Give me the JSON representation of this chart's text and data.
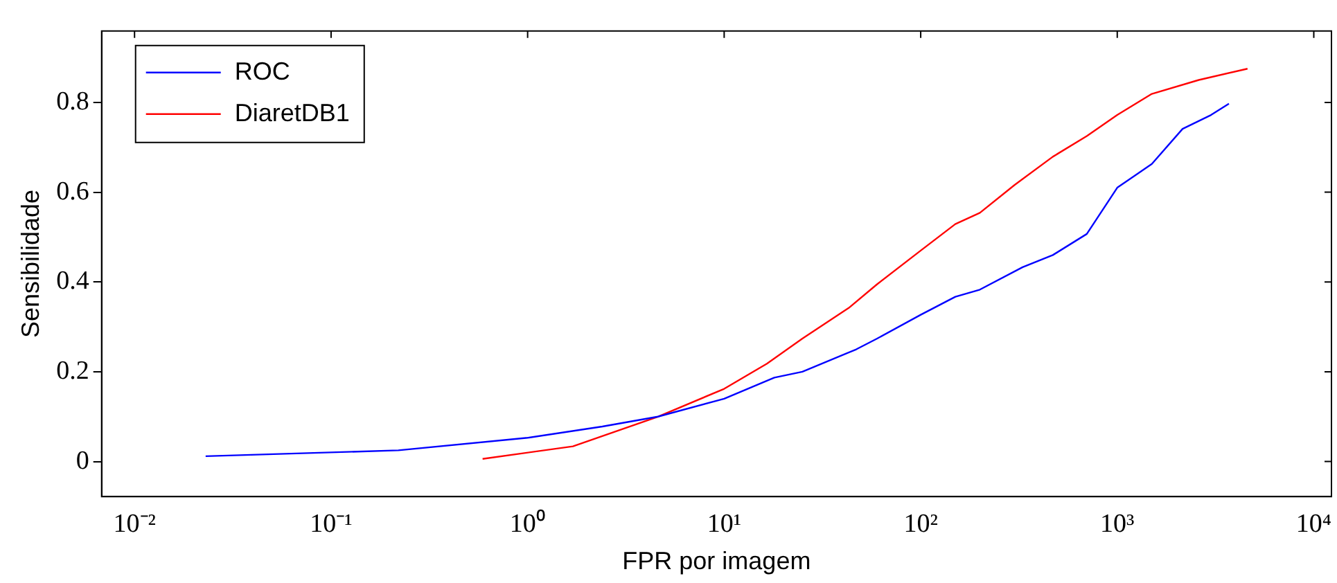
{
  "chart_data": {
    "type": "line",
    "xlabel": "FPR por imagem",
    "ylabel": "Sensibilidade",
    "log": "x",
    "xlim": [
      0.0068,
      12300
    ],
    "ylim": [
      -0.078,
      0.959
    ],
    "xticks": [
      {
        "value": 0.01,
        "label": "10⁻²"
      },
      {
        "value": 0.1,
        "label": "10⁻¹"
      },
      {
        "value": 1,
        "label": "10⁰"
      },
      {
        "value": 10,
        "label": "10¹"
      },
      {
        "value": 100,
        "label": "10²"
      },
      {
        "value": 1000,
        "label": "10³"
      },
      {
        "value": 10000,
        "label": "10⁴"
      }
    ],
    "yticks": [
      0,
      0.2,
      0.4,
      0.6,
      0.8
    ],
    "grid": false,
    "legend": "top left",
    "marker": "none",
    "line_style": "solid",
    "series": [
      {
        "name": "ROC",
        "color": "#0000ff",
        "x": [
          0.023,
          0.22,
          1,
          2.4,
          4.6,
          10,
          18,
          25,
          47,
          60,
          100,
          150,
          200,
          330,
          470,
          700,
          1000,
          1500,
          2150,
          3000,
          3700
        ],
        "values": [
          0.012,
          0.025,
          0.053,
          0.078,
          0.1,
          0.14,
          0.187,
          0.2,
          0.25,
          0.274,
          0.327,
          0.367,
          0.383,
          0.433,
          0.46,
          0.507,
          0.61,
          0.663,
          0.741,
          0.772,
          0.797
        ]
      },
      {
        "name": "DiaretDB1",
        "color": "#ff0000",
        "x": [
          0.59,
          1.7,
          4.6,
          10,
          16.5,
          25,
          43,
          60,
          100,
          150,
          200,
          300,
          470,
          700,
          1000,
          1500,
          2600,
          4600
        ],
        "values": [
          0.006,
          0.034,
          0.1,
          0.162,
          0.218,
          0.274,
          0.342,
          0.395,
          0.47,
          0.529,
          0.554,
          0.616,
          0.679,
          0.725,
          0.772,
          0.819,
          0.85,
          0.875
        ]
      }
    ]
  }
}
